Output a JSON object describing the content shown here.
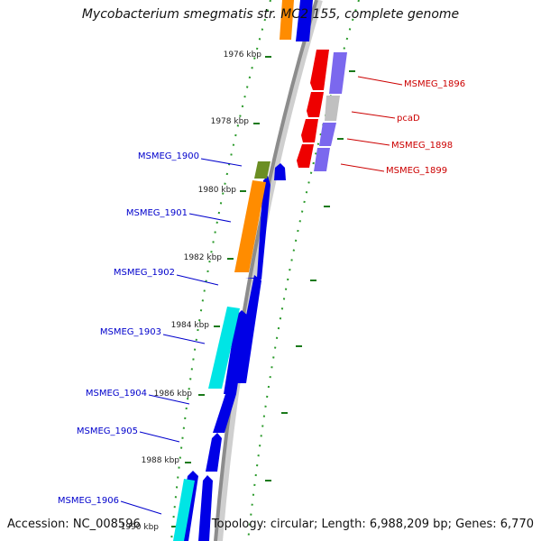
{
  "title": "Mycobacterium smegmatis str. MC2 155, complete genome",
  "accession": "Accession: NC_008596",
  "topology": "Topology: circular; Length: 6,988,209 bp; Genes: 6,770",
  "colors": {
    "backbone": "#8c8c8c",
    "tick": "#1a7a1a",
    "forward_label": "#0000cc",
    "reverse_label": "#cc0000"
  },
  "scale_ticks": [
    "1976 kbp",
    "1978 kbp",
    "1980 kbp",
    "1982 kbp",
    "1984 kbp",
    "1986 kbp",
    "1988 kbp",
    "1990 kbp"
  ],
  "forward_labels": [
    "MSMEG_1900",
    "MSMEG_1901",
    "MSMEG_1902",
    "MSMEG_1903",
    "MSMEG_1904",
    "MSMEG_1905",
    "MSMEG_1906"
  ],
  "reverse_labels": [
    "MSMEG_1896",
    "pcaD",
    "MSMEG_1898",
    "MSMEG_1899"
  ]
}
